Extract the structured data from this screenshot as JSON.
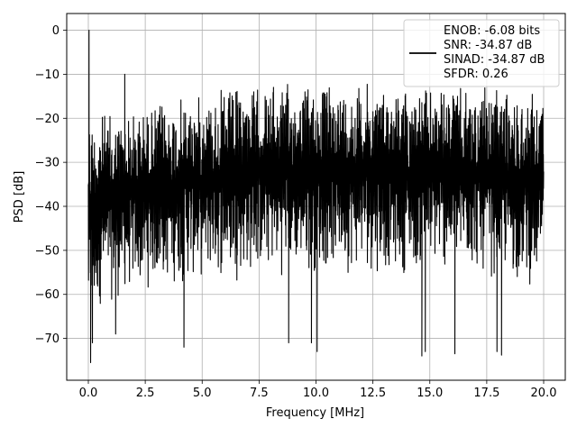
{
  "chart_data": {
    "type": "line",
    "title": "",
    "xlabel": "Frequency [MHz]",
    "ylabel": "PSD [dB]",
    "xlim": [
      -0.95,
      20.95
    ],
    "ylim": [
      -79.5,
      3.8
    ],
    "xticks": [
      0.0,
      2.5,
      5.0,
      7.5,
      10.0,
      12.5,
      15.0,
      17.5,
      20.0
    ],
    "xtick_labels": [
      "0.0",
      "2.5",
      "5.0",
      "7.5",
      "10.0",
      "12.5",
      "15.0",
      "17.5",
      "20.0"
    ],
    "yticks": [
      0,
      -10,
      -20,
      -30,
      -40,
      -50,
      -60,
      -70
    ],
    "ytick_labels": [
      "0",
      "−10",
      "−20",
      "−30",
      "−40",
      "−50",
      "−60",
      "−70"
    ],
    "grid": true,
    "legend_position": "upper right",
    "series": [
      {
        "name": "ENOB: -6.08 bits\nSNR: -34.87 dB\nSINAD: -34.87 dB\nSFDR: 0.26",
        "color": "#000000",
        "description": "dense noise-like power spectral density",
        "x_range": [
          0.0,
          20.0
        ],
        "peak": {
          "x": 0.03,
          "y": 0.0
        },
        "spur": {
          "x": 1.6,
          "y": -10.0
        },
        "upper_envelope": [
          [
            0.0,
            -13
          ],
          [
            0.2,
            -18
          ],
          [
            0.5,
            -17.5
          ],
          [
            1.0,
            -18.5
          ],
          [
            2.0,
            -17.5
          ],
          [
            3.0,
            -16
          ],
          [
            5.0,
            -14
          ],
          [
            7.0,
            -12
          ],
          [
            10.0,
            -11.5
          ],
          [
            12.5,
            -11.5
          ],
          [
            15.0,
            -12.5
          ],
          [
            17.5,
            -13
          ],
          [
            20.0,
            -13.5
          ]
        ],
        "lower_envelope": [
          [
            0.0,
            -76
          ],
          [
            0.5,
            -64
          ],
          [
            1.0,
            -63
          ],
          [
            2.5,
            -60
          ],
          [
            5.0,
            -58
          ],
          [
            7.5,
            -57
          ],
          [
            10.0,
            -56
          ],
          [
            12.5,
            -56
          ],
          [
            15.0,
            -56
          ],
          [
            17.5,
            -57
          ],
          [
            20.0,
            -60
          ]
        ],
        "deep_notches": [
          [
            0.1,
            -75.5
          ],
          [
            0.18,
            -71
          ],
          [
            1.2,
            -69
          ],
          [
            4.2,
            -72
          ],
          [
            8.8,
            -71
          ],
          [
            9.8,
            -71
          ],
          [
            10.05,
            -73
          ],
          [
            14.65,
            -74
          ],
          [
            14.8,
            -73
          ],
          [
            16.1,
            -73.5
          ],
          [
            17.95,
            -73
          ],
          [
            18.15,
            -73.8
          ]
        ]
      }
    ],
    "legend_lines": [
      "ENOB: -6.08 bits",
      "SNR: -34.87 dB",
      "SINAD: -34.87 dB",
      "SFDR: 0.26"
    ]
  }
}
